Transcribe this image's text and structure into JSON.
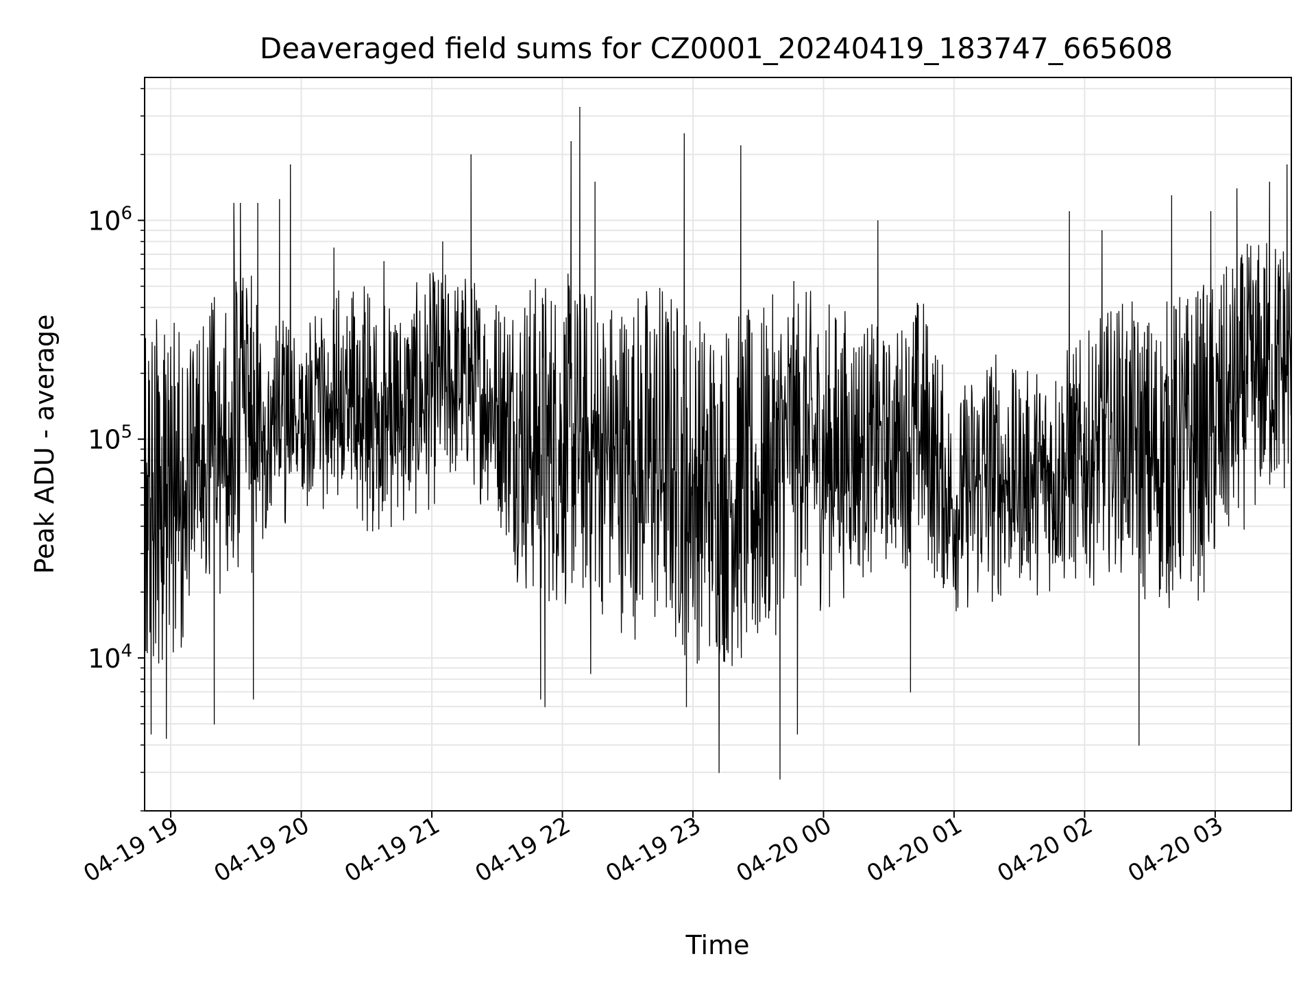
{
  "chart_data": {
    "type": "line",
    "title": "Deaveraged field sums for CZ0001_20240419_183747_665608",
    "xlabel": "Time",
    "ylabel": "Peak ADU - average",
    "yscale": "log",
    "xlim": [
      "2024-04-19 18:48",
      "2024-04-20 03:35"
    ],
    "ylim": [
      2000,
      4500000
    ],
    "grid": true,
    "line_color": "#000000",
    "x_ticks": [
      {
        "value": "2024-04-19 19:00",
        "label": "04-19 19"
      },
      {
        "value": "2024-04-19 20:00",
        "label": "04-19 20"
      },
      {
        "value": "2024-04-19 21:00",
        "label": "04-19 21"
      },
      {
        "value": "2024-04-19 22:00",
        "label": "04-19 22"
      },
      {
        "value": "2024-04-19 23:00",
        "label": "04-19 23"
      },
      {
        "value": "2024-04-20 00:00",
        "label": "04-20 00"
      },
      {
        "value": "2024-04-20 01:00",
        "label": "04-20 01"
      },
      {
        "value": "2024-04-20 02:00",
        "label": "04-20 02"
      },
      {
        "value": "2024-04-20 03:00",
        "label": "04-20 03"
      }
    ],
    "y_ticks": [
      {
        "value": 10000,
        "base": "10",
        "exp": "4"
      },
      {
        "value": 100000,
        "base": "10",
        "exp": "5"
      },
      {
        "value": 1000000,
        "base": "10",
        "exp": "6"
      }
    ],
    "series": [
      {
        "type": "band",
        "x": [
          "2024-04-19 18:48",
          "2024-04-19 19:00",
          "2024-04-19 19:15",
          "2024-04-19 19:30",
          "2024-04-19 19:45",
          "2024-04-19 20:00",
          "2024-04-19 20:15",
          "2024-04-19 20:30",
          "2024-04-19 20:45",
          "2024-04-19 21:00",
          "2024-04-19 21:15",
          "2024-04-19 21:30",
          "2024-04-19 21:45",
          "2024-04-19 22:00",
          "2024-04-19 22:15",
          "2024-04-19 22:30",
          "2024-04-19 22:45",
          "2024-04-19 23:00",
          "2024-04-19 23:15",
          "2024-04-19 23:30",
          "2024-04-19 23:45",
          "2024-04-20 00:00",
          "2024-04-20 00:15",
          "2024-04-20 00:30",
          "2024-04-20 00:45",
          "2024-04-20 01:00",
          "2024-04-20 01:15",
          "2024-04-20 01:30",
          "2024-04-20 01:45",
          "2024-04-20 02:00",
          "2024-04-20 02:15",
          "2024-04-20 02:30",
          "2024-04-20 02:45",
          "2024-04-20 03:00",
          "2024-04-20 03:15",
          "2024-04-20 03:35"
        ],
        "low": [
          6000,
          10000,
          12000,
          20000,
          30000,
          45000,
          40000,
          35000,
          35000,
          45000,
          60000,
          40000,
          15000,
          15000,
          15000,
          12000,
          10000,
          9000,
          8000,
          7000,
          20000,
          15000,
          20000,
          25000,
          25000,
          15000,
          15000,
          20000,
          18000,
          20000,
          25000,
          15000,
          15000,
          20000,
          40000,
          50000
        ],
        "high": [
          350000,
          400000,
          350000,
          900000,
          400000,
          300000,
          500000,
          500000,
          450000,
          600000,
          600000,
          500000,
          600000,
          600000,
          500000,
          500000,
          600000,
          400000,
          400000,
          400000,
          550000,
          450000,
          400000,
          300000,
          500000,
          150000,
          300000,
          200000,
          250000,
          300000,
          450000,
          400000,
          500000,
          550000,
          800000,
          1000000
        ]
      },
      {
        "type": "spikes",
        "x": [
          "2024-04-19 18:51",
          "2024-04-19 18:58",
          "2024-04-19 19:20",
          "2024-04-19 19:29",
          "2024-04-19 19:32",
          "2024-04-19 19:38",
          "2024-04-19 19:40",
          "2024-04-19 19:50",
          "2024-04-19 19:55",
          "2024-04-19 20:15",
          "2024-04-19 20:38",
          "2024-04-19 21:05",
          "2024-04-19 21:18",
          "2024-04-19 21:50",
          "2024-04-19 21:52",
          "2024-04-19 22:04",
          "2024-04-19 22:08",
          "2024-04-19 22:13",
          "2024-04-19 22:15",
          "2024-04-19 22:56",
          "2024-04-19 22:57",
          "2024-04-19 23:12",
          "2024-04-19 23:22",
          "2024-04-19 23:40",
          "2024-04-19 23:48",
          "2024-04-20 00:25",
          "2024-04-20 00:40",
          "2024-04-20 01:53",
          "2024-04-20 02:08",
          "2024-04-20 02:25",
          "2024-04-20 02:40",
          "2024-04-20 02:58",
          "2024-04-20 03:10",
          "2024-04-20 03:25",
          "2024-04-20 03:33"
        ],
        "values": [
          4500,
          4300,
          5000,
          1200000,
          1200000,
          6500,
          1200000,
          1250000,
          1800000,
          750000,
          650000,
          800000,
          2000000,
          6500,
          6000,
          2300000,
          3300000,
          8500,
          1500000,
          2500000,
          6000,
          3000,
          2200000,
          2800,
          4500,
          1000000,
          7000,
          1100000,
          900000,
          4000,
          1300000,
          1100000,
          1400000,
          1500000,
          1800000
        ]
      }
    ]
  }
}
